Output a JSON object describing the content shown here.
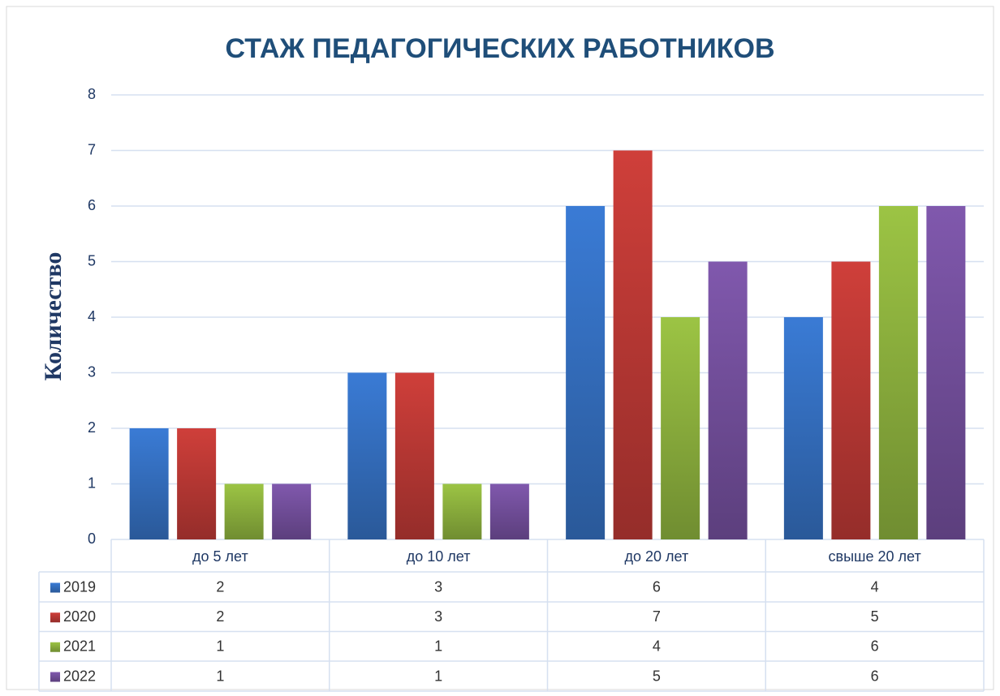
{
  "chart_data": {
    "type": "bar",
    "title": "СТАЖ ПЕДАГОГИЧЕСКИХ РАБОТНИКОВ",
    "y_label": "Количество",
    "categories": [
      "до 5 лет",
      "до 10 лет",
      "до 20 лет",
      "свыше 20 лет"
    ],
    "series": [
      {
        "name": "2019",
        "color": "#3a7bd5",
        "values": [
          2,
          3,
          6,
          4
        ]
      },
      {
        "name": "2020",
        "color": "#cf3f3a",
        "values": [
          2,
          3,
          7,
          5
        ]
      },
      {
        "name": "2021",
        "color": "#9cc444",
        "values": [
          1,
          1,
          4,
          6
        ]
      },
      {
        "name": "2022",
        "color": "#8058ad",
        "values": [
          1,
          1,
          5,
          6
        ]
      }
    ],
    "ylim": [
      0,
      8
    ],
    "yticks": [
      0,
      1,
      2,
      3,
      4,
      5,
      6,
      7,
      8
    ],
    "grid": true,
    "data_table": true
  }
}
